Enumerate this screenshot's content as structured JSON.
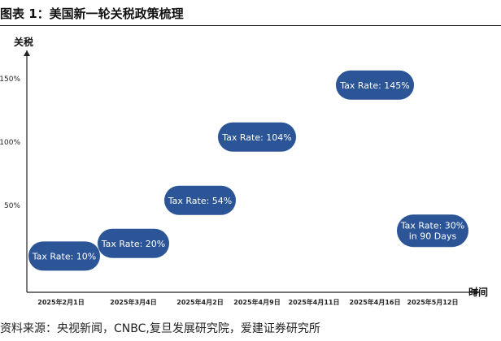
{
  "header": {
    "title": "图表 1：美国新一轮关税政策梳理"
  },
  "source": "资料来源：央视新闻，CNBC,复旦发展研究院，爱建证券研究所",
  "colors": {
    "pill": "#2b5596",
    "pill_text": "#ffffff",
    "axis": "#222222"
  },
  "chart_data": {
    "type": "timeline",
    "ylabel": "关税",
    "xlabel": "时间",
    "y_ticks": [
      "150%",
      "100%",
      "50%"
    ],
    "y_tick_values": [
      150,
      100,
      50
    ],
    "ylim": [
      0,
      160
    ],
    "grid": false,
    "categories": [
      "2025年2月1日",
      "2025年3月4日",
      "2025年4月2日",
      "2025年4月9日",
      "2025年4月11日",
      "2025年4月16日",
      "2025年5月12日"
    ],
    "events": [
      {
        "category": "2025年2月1日",
        "value": 10,
        "label": [
          "Tax Rate: 10%"
        ]
      },
      {
        "category": "2025年3月4日",
        "value": 20,
        "label": [
          "Tax Rate: 20%"
        ]
      },
      {
        "category": "2025年4月2日",
        "value": 54,
        "label": [
          "Tax Rate: 54%"
        ]
      },
      {
        "category": "2025年4月9日",
        "value": 104,
        "label": [
          "Tax Rate: 104%"
        ]
      },
      {
        "category": "2025年4月16日",
        "value": 145,
        "label": [
          "Tax Rate: 145%"
        ]
      },
      {
        "category": "2025年5月12日",
        "value": 30,
        "label": [
          "Tax Rate: 30%",
          "in 90 Days"
        ]
      }
    ]
  }
}
